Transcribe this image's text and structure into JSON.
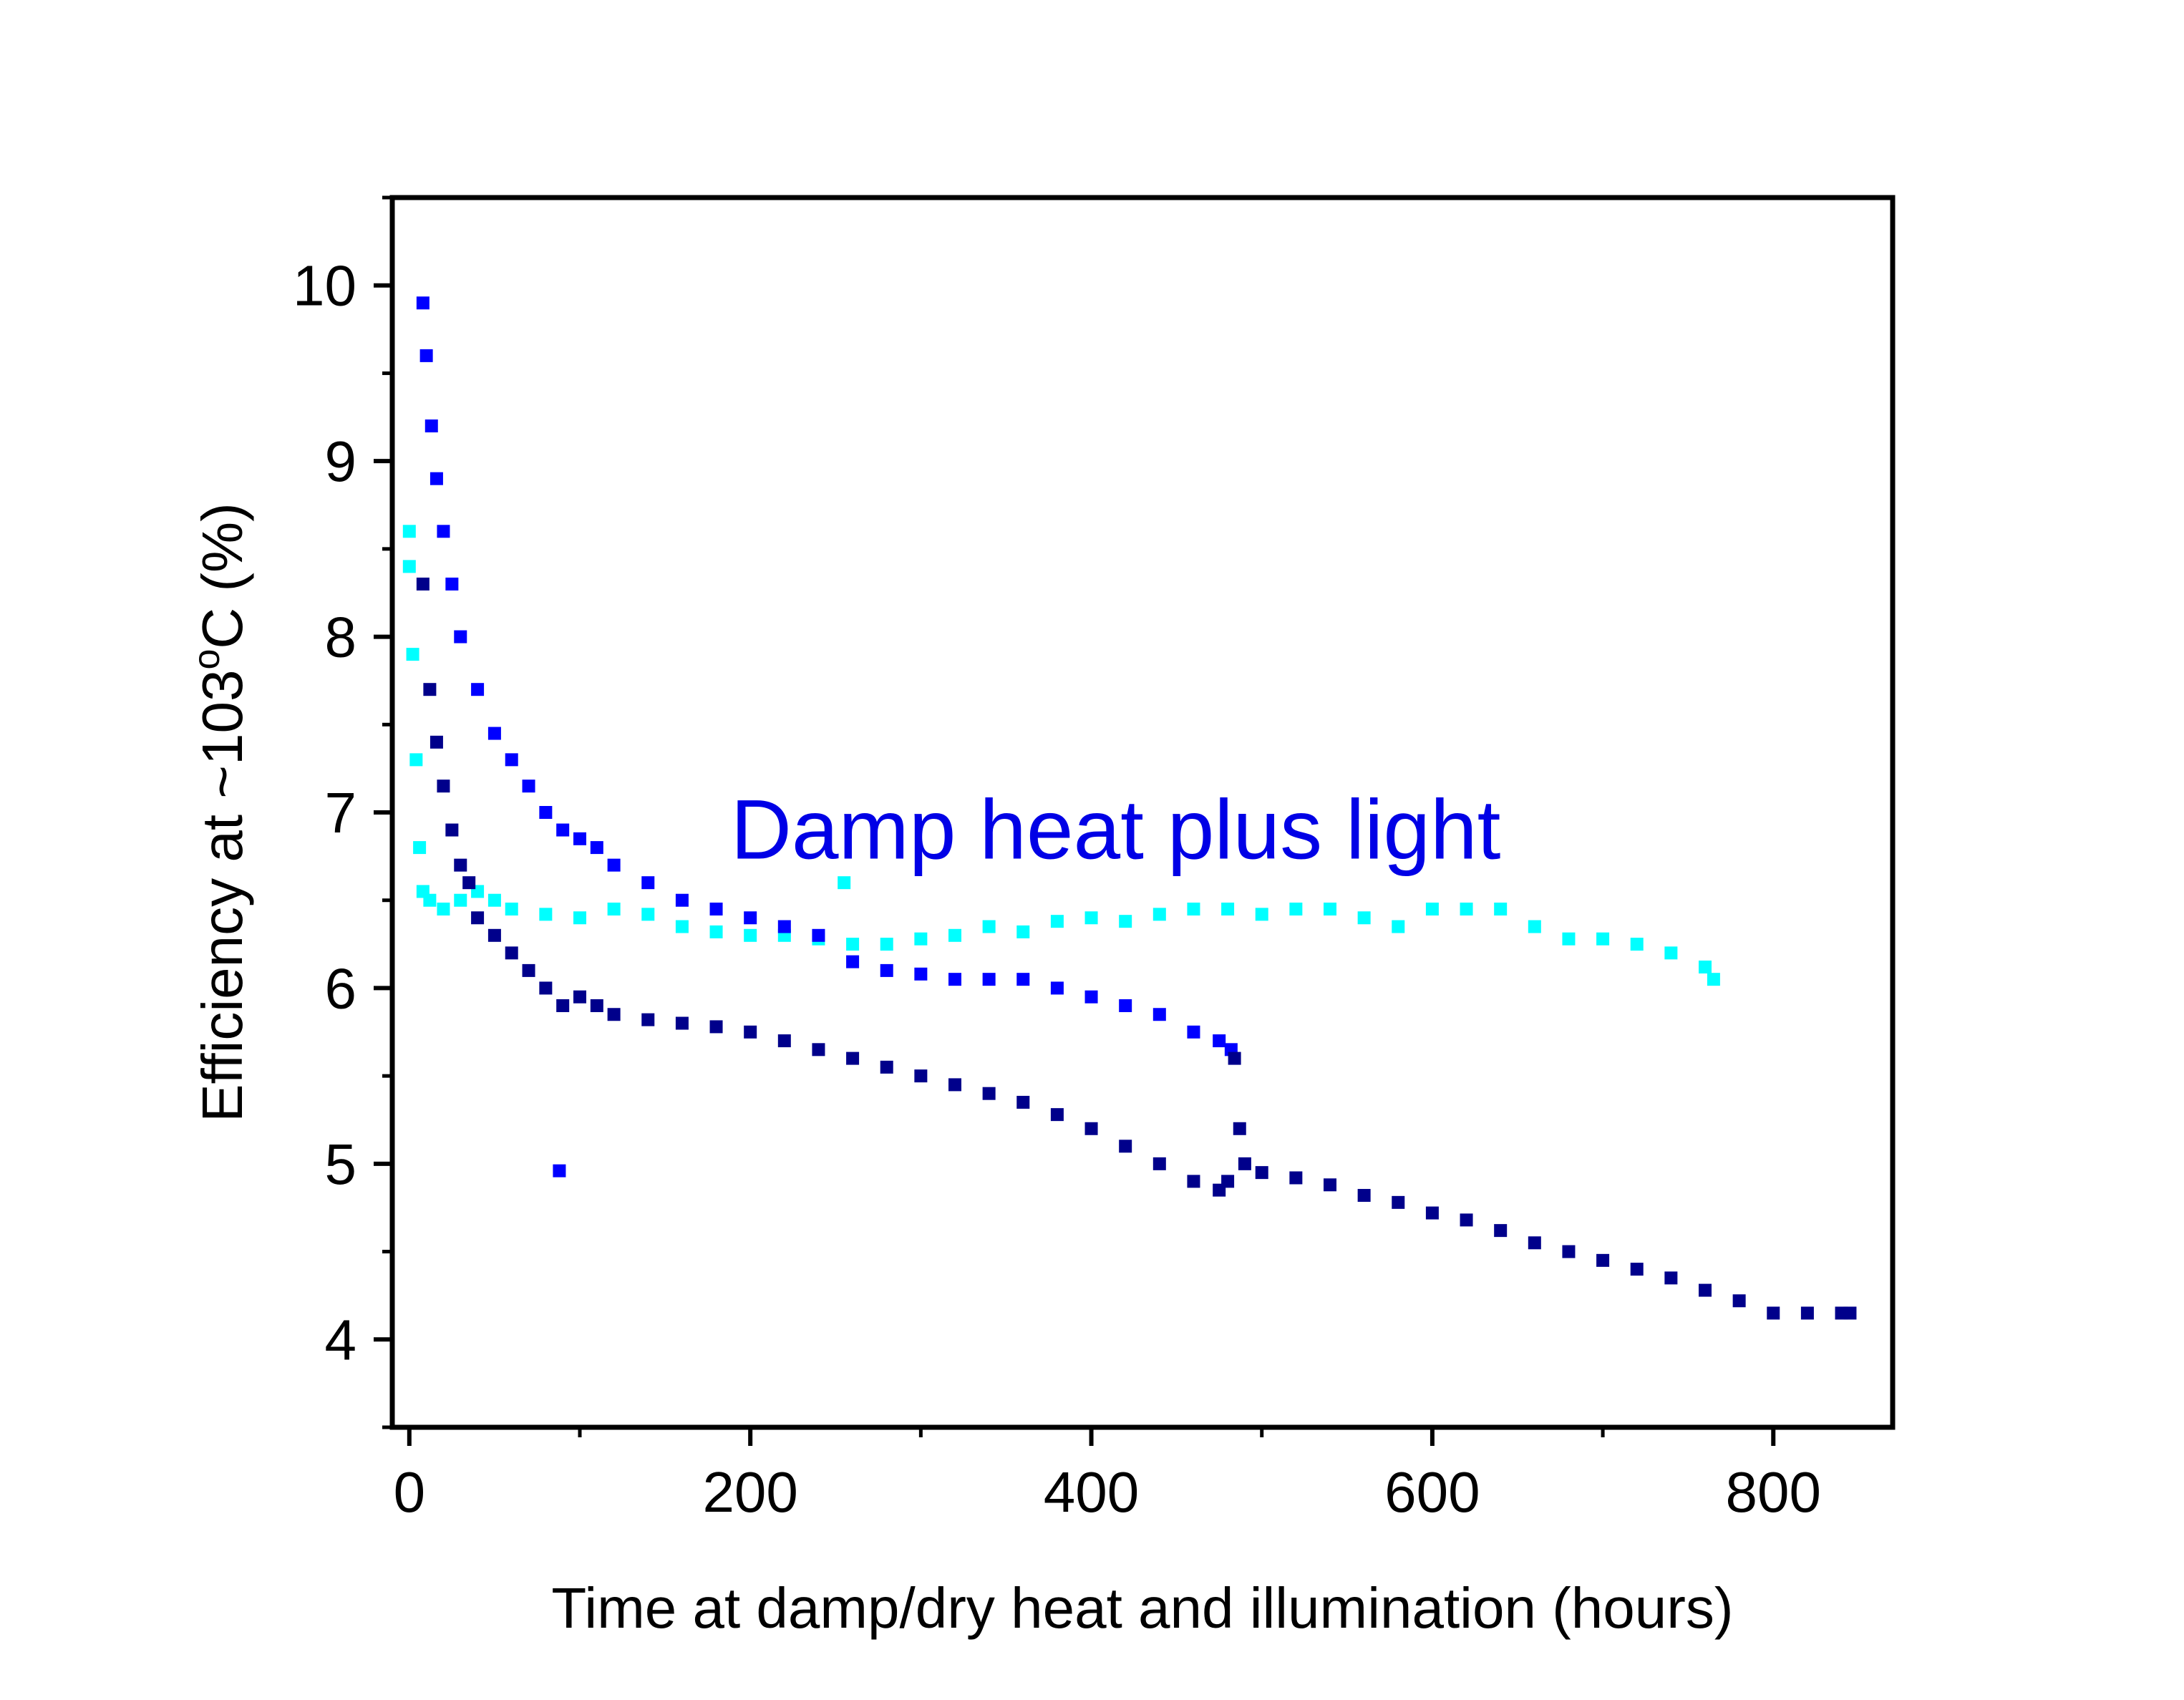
{
  "chart_data": {
    "type": "scatter",
    "title": "",
    "xlabel": "Time at damp/dry heat and illumination (hours)",
    "ylabel_main": "Efficiency at ~103",
    "ylabel_sup": "o",
    "ylabel_tail": "C (%)",
    "xlim": [
      -10,
      870
    ],
    "ylim": [
      3.5,
      10.5
    ],
    "x_ticks": [
      0,
      200,
      400,
      600,
      800
    ],
    "y_ticks": [
      4,
      5,
      6,
      7,
      8,
      9,
      10
    ],
    "grid": false,
    "annotation": {
      "text": "Damp heat plus light",
      "x": 390,
      "y": 6.9,
      "color": "#0000e6"
    },
    "series": [
      {
        "color": "#00ffff",
        "points": [
          [
            0,
            8.6
          ],
          [
            0,
            8.4
          ],
          [
            2,
            7.9
          ],
          [
            4,
            7.3
          ],
          [
            6,
            6.8
          ],
          [
            8,
            6.55
          ],
          [
            12,
            6.5
          ],
          [
            20,
            6.45
          ],
          [
            30,
            6.5
          ],
          [
            40,
            6.55
          ],
          [
            50,
            6.5
          ],
          [
            60,
            6.45
          ],
          [
            80,
            6.42
          ],
          [
            100,
            6.4
          ],
          [
            120,
            6.45
          ],
          [
            140,
            6.42
          ],
          [
            160,
            6.35
          ],
          [
            180,
            6.32
          ],
          [
            200,
            6.3
          ],
          [
            220,
            6.3
          ],
          [
            240,
            6.28
          ],
          [
            255,
            6.6
          ],
          [
            260,
            6.25
          ],
          [
            280,
            6.25
          ],
          [
            300,
            6.28
          ],
          [
            320,
            6.3
          ],
          [
            340,
            6.35
          ],
          [
            360,
            6.32
          ],
          [
            380,
            6.38
          ],
          [
            400,
            6.4
          ],
          [
            420,
            6.38
          ],
          [
            440,
            6.42
          ],
          [
            460,
            6.45
          ],
          [
            480,
            6.45
          ],
          [
            500,
            6.42
          ],
          [
            520,
            6.45
          ],
          [
            540,
            6.45
          ],
          [
            560,
            6.4
          ],
          [
            580,
            6.35
          ],
          [
            600,
            6.45
          ],
          [
            620,
            6.45
          ],
          [
            640,
            6.45
          ],
          [
            660,
            6.35
          ],
          [
            680,
            6.28
          ],
          [
            700,
            6.28
          ],
          [
            720,
            6.25
          ],
          [
            740,
            6.2
          ],
          [
            760,
            6.12
          ],
          [
            765,
            6.05
          ]
        ]
      },
      {
        "color": "#0000ff",
        "points": [
          [
            8,
            9.9
          ],
          [
            10,
            9.6
          ],
          [
            13,
            9.2
          ],
          [
            16,
            8.9
          ],
          [
            20,
            8.6
          ],
          [
            25,
            8.3
          ],
          [
            30,
            8.0
          ],
          [
            40,
            7.7
          ],
          [
            50,
            7.45
          ],
          [
            60,
            7.3
          ],
          [
            70,
            7.15
          ],
          [
            80,
            7.0
          ],
          [
            90,
            6.9
          ],
          [
            100,
            6.85
          ],
          [
            110,
            6.8
          ],
          [
            120,
            6.7
          ],
          [
            140,
            6.6
          ],
          [
            160,
            6.5
          ],
          [
            180,
            6.45
          ],
          [
            200,
            6.4
          ],
          [
            220,
            6.35
          ],
          [
            240,
            6.3
          ],
          [
            260,
            6.15
          ],
          [
            280,
            6.1
          ],
          [
            300,
            6.08
          ],
          [
            320,
            6.05
          ],
          [
            340,
            6.05
          ],
          [
            360,
            6.05
          ],
          [
            380,
            6.0
          ],
          [
            400,
            5.95
          ],
          [
            420,
            5.9
          ],
          [
            440,
            5.85
          ],
          [
            460,
            5.75
          ],
          [
            475,
            5.7
          ],
          [
            482,
            5.65
          ],
          [
            88,
            4.96
          ]
        ]
      },
      {
        "color": "#00008b",
        "points": [
          [
            8,
            8.3
          ],
          [
            12,
            7.7
          ],
          [
            16,
            7.4
          ],
          [
            20,
            7.15
          ],
          [
            25,
            6.9
          ],
          [
            30,
            6.7
          ],
          [
            35,
            6.6
          ],
          [
            40,
            6.4
          ],
          [
            50,
            6.3
          ],
          [
            60,
            6.2
          ],
          [
            70,
            6.1
          ],
          [
            80,
            6.0
          ],
          [
            90,
            5.9
          ],
          [
            100,
            5.95
          ],
          [
            110,
            5.9
          ],
          [
            120,
            5.85
          ],
          [
            140,
            5.82
          ],
          [
            160,
            5.8
          ],
          [
            180,
            5.78
          ],
          [
            200,
            5.75
          ],
          [
            220,
            5.7
          ],
          [
            240,
            5.65
          ],
          [
            260,
            5.6
          ],
          [
            280,
            5.55
          ],
          [
            300,
            5.5
          ],
          [
            320,
            5.45
          ],
          [
            340,
            5.4
          ],
          [
            360,
            5.35
          ],
          [
            380,
            5.28
          ],
          [
            400,
            5.2
          ],
          [
            420,
            5.1
          ],
          [
            440,
            5.0
          ],
          [
            460,
            4.9
          ],
          [
            475,
            4.85
          ],
          [
            480,
            4.9
          ],
          [
            484,
            5.6
          ],
          [
            487,
            5.2
          ],
          [
            490,
            5.0
          ],
          [
            500,
            4.95
          ],
          [
            520,
            4.92
          ],
          [
            540,
            4.88
          ],
          [
            560,
            4.82
          ],
          [
            580,
            4.78
          ],
          [
            600,
            4.72
          ],
          [
            620,
            4.68
          ],
          [
            640,
            4.62
          ],
          [
            660,
            4.55
          ],
          [
            680,
            4.5
          ],
          [
            700,
            4.45
          ],
          [
            720,
            4.4
          ],
          [
            740,
            4.35
          ],
          [
            760,
            4.28
          ],
          [
            780,
            4.22
          ],
          [
            800,
            4.15
          ],
          [
            820,
            4.15
          ],
          [
            840,
            4.15
          ],
          [
            845,
            4.15
          ]
        ]
      }
    ]
  }
}
